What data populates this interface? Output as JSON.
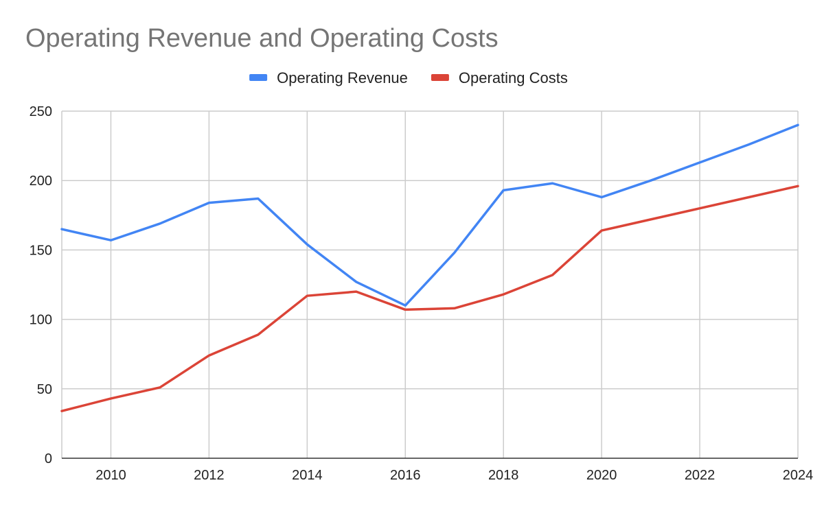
{
  "chart_data": {
    "type": "line",
    "title": "Operating Revenue and Operating Costs",
    "xlabel": "",
    "ylabel": "",
    "x": [
      2009,
      2010,
      2011,
      2012,
      2013,
      2014,
      2015,
      2016,
      2017,
      2018,
      2019,
      2020,
      2021,
      2022,
      2023,
      2024
    ],
    "xlim": [
      2009,
      2024
    ],
    "ylim": [
      0,
      250
    ],
    "x_ticks": [
      2010,
      2012,
      2014,
      2016,
      2018,
      2020,
      2022,
      2024
    ],
    "y_ticks": [
      0,
      50,
      100,
      150,
      200,
      250
    ],
    "grid": true,
    "legend_position": "top",
    "series": [
      {
        "name": "Operating Revenue",
        "color": "#4285f4",
        "values": [
          165,
          157,
          169,
          184,
          187,
          154,
          127,
          110,
          148,
          193,
          198,
          188,
          200,
          213,
          226,
          240
        ]
      },
      {
        "name": "Operating Costs",
        "color": "#db4437",
        "values": [
          34,
          43,
          51,
          74,
          89,
          117,
          120,
          107,
          108,
          118,
          132,
          164,
          172,
          180,
          188,
          196
        ]
      }
    ]
  }
}
